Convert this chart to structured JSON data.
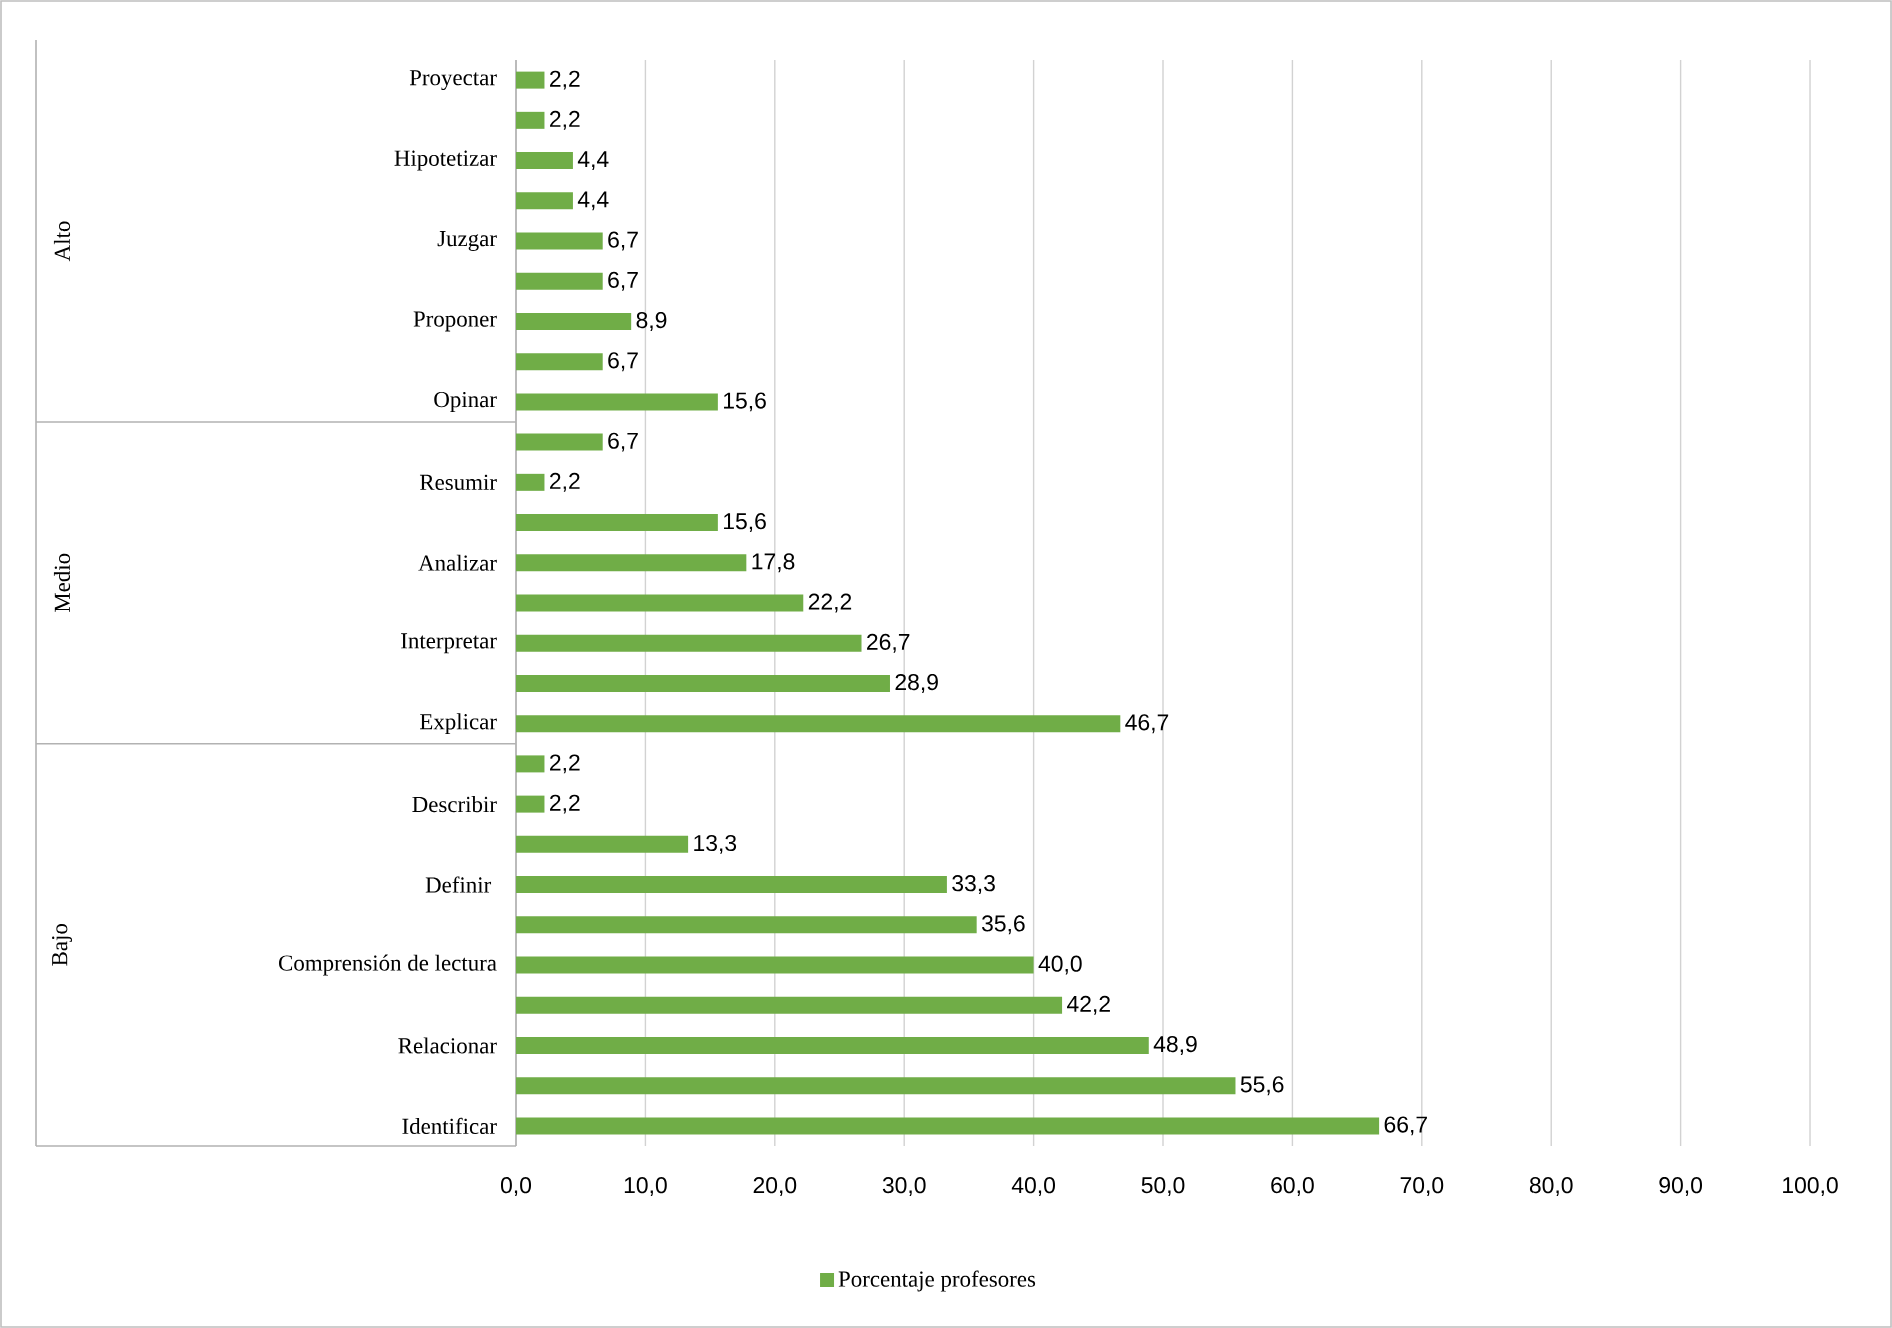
{
  "chart_data": {
    "type": "bar",
    "orientation": "horizontal",
    "categories": [
      "Proyectar",
      null,
      "Hipotetizar",
      null,
      "Juzgar",
      null,
      "Proponer",
      null,
      "Opinar",
      null,
      "Resumir",
      null,
      "Analizar",
      null,
      "Interpretar",
      null,
      "Explicar",
      null,
      "Describir",
      null,
      "Definir ",
      null,
      "Comprensión de lectura",
      null,
      "Relacionar",
      null,
      "Identificar"
    ],
    "series": [
      {
        "name": "Porcentaje profesores",
        "color": "#70ad47",
        "values": [
          2.2,
          2.2,
          4.4,
          4.4,
          6.7,
          6.7,
          8.9,
          6.7,
          15.6,
          6.7,
          2.2,
          15.6,
          17.8,
          22.2,
          26.7,
          28.9,
          46.7,
          2.2,
          2.2,
          13.3,
          33.3,
          35.6,
          40.0,
          42.2,
          48.9,
          55.6,
          66.7
        ],
        "value_labels": [
          "2,2",
          "2,2",
          "4,4",
          "4,4",
          "6,7",
          "6,7",
          "8,9",
          "6,7",
          "15,6",
          "6,7",
          "2,2",
          "15,6",
          "17,8",
          "22,2",
          "26,7",
          "28,9",
          "46,7",
          "2,2",
          "2,2",
          "13,3",
          "33,3",
          "35,6",
          "40,0",
          "42,2",
          "48,9",
          "55,6",
          "66,7"
        ]
      }
    ],
    "xlim": [
      0,
      100
    ],
    "xticks": [
      {
        "value": 0,
        "label": "0,0"
      },
      {
        "value": 10,
        "label": "10,0"
      },
      {
        "value": 20,
        "label": "20,0"
      },
      {
        "value": 30,
        "label": "30,0"
      },
      {
        "value": 40,
        "label": "40,0"
      },
      {
        "value": 50,
        "label": "50,0"
      },
      {
        "value": 60,
        "label": "60,0"
      },
      {
        "value": 70,
        "label": "70,0"
      },
      {
        "value": 80,
        "label": "80,0"
      },
      {
        "value": 90,
        "label": "90,0"
      },
      {
        "value": 100,
        "label": "100,0"
      }
    ],
    "annotations": [
      "Alto",
      "Medio",
      "Bajo"
    ],
    "grid": "x",
    "legend": "bottom"
  }
}
